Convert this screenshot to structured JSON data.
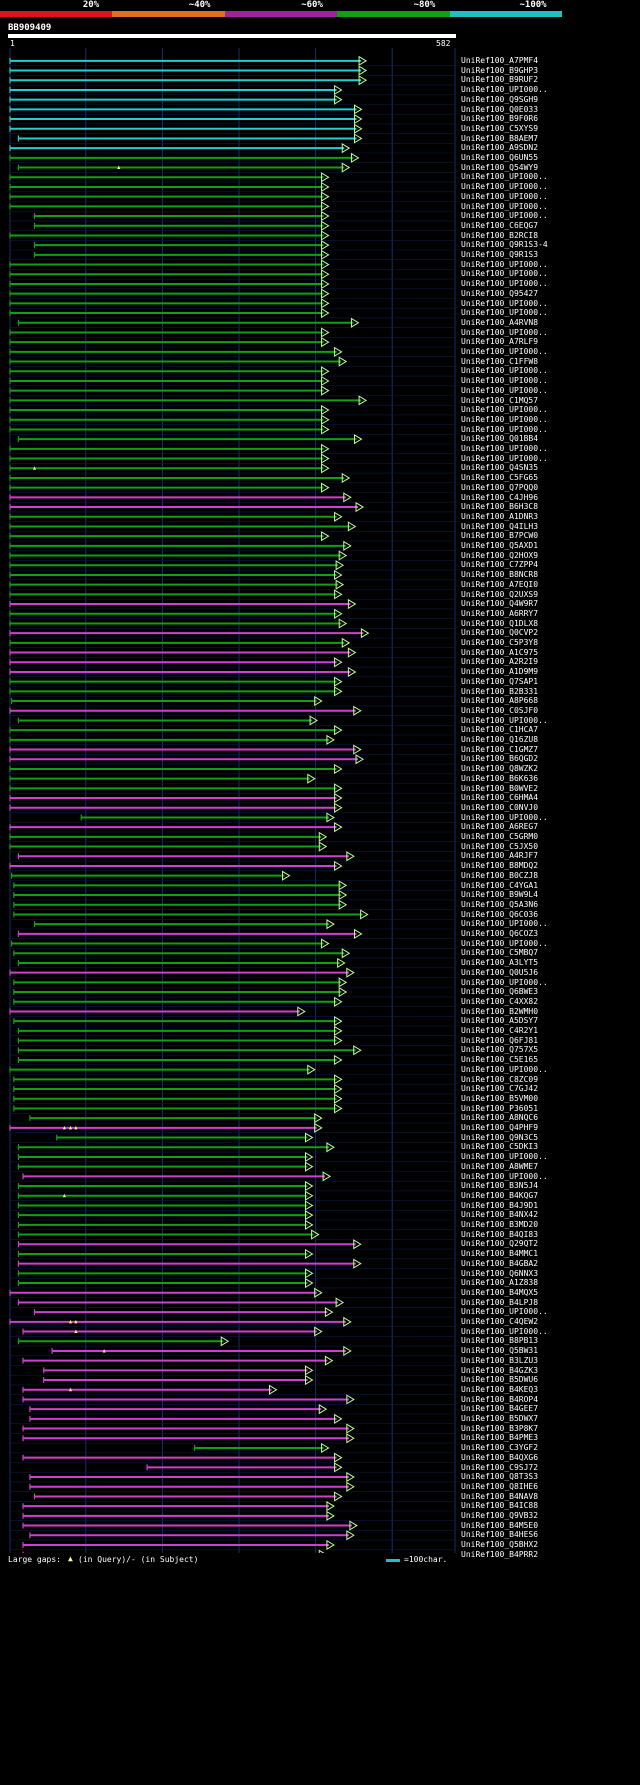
{
  "legend": [
    {
      "label": "20%",
      "color": "#e01020"
    },
    {
      "label": "~40%",
      "color": "#e07020"
    },
    {
      "label": "~60%",
      "color": "#a020a0"
    },
    {
      "label": "~80%",
      "color": "#10a010"
    },
    {
      "label": "~100%",
      "color": "#20c0c0"
    }
  ],
  "query": {
    "name": "BB909409",
    "start": "1",
    "end": "582"
  },
  "colors": {
    "cyan": "#20d0d0",
    "green": "#10a010",
    "magenta": "#d040d0",
    "grid": "#1a2e6a",
    "hgrid": "#0a1a44",
    "arrow": "#c0ff90",
    "gapmark": "#ffff80"
  },
  "hits": [
    {
      "name": "UniRef100_A7PMF4",
      "s": 1,
      "e": 462,
      "c": "cyan"
    },
    {
      "name": "UniRef100_B9GHP3",
      "s": 1,
      "e": 462,
      "c": "cyan"
    },
    {
      "name": "UniRef100_B9RUF2",
      "s": 1,
      "e": 462,
      "c": "cyan"
    },
    {
      "name": "UniRef100_UPI000..",
      "s": 1,
      "e": 430,
      "c": "cyan"
    },
    {
      "name": "UniRef100_Q9SGH9",
      "s": 1,
      "e": 430,
      "c": "cyan"
    },
    {
      "name": "UniRef100_Q0E033",
      "s": 1,
      "e": 456,
      "c": "cyan"
    },
    {
      "name": "UniRef100_B9F0R6",
      "s": 1,
      "e": 456,
      "c": "cyan"
    },
    {
      "name": "UniRef100_C5XYS9",
      "s": 1,
      "e": 456,
      "c": "cyan"
    },
    {
      "name": "UniRef100_B8AEM7",
      "s": 12,
      "e": 456,
      "c": "cyan"
    },
    {
      "name": "UniRef100_A9SDN2",
      "s": 1,
      "e": 440,
      "c": "cyan"
    },
    {
      "name": "UniRef100_Q6UN55",
      "s": 1,
      "e": 452,
      "c": "green"
    },
    {
      "name": "UniRef100_Q54WY9",
      "s": 12,
      "e": 440,
      "c": "green",
      "gaps": [
        143
      ]
    },
    {
      "name": "UniRef100_UPI000..",
      "s": 1,
      "e": 413,
      "c": "green"
    },
    {
      "name": "UniRef100_UPI000..",
      "s": 1,
      "e": 413,
      "c": "green"
    },
    {
      "name": "UniRef100_UPI000..",
      "s": 1,
      "e": 413,
      "c": "green"
    },
    {
      "name": "UniRef100_UPI000..",
      "s": 1,
      "e": 413,
      "c": "green"
    },
    {
      "name": "UniRef100_UPI000..",
      "s": 33,
      "e": 413,
      "c": "green"
    },
    {
      "name": "UniRef100_C6EQG7",
      "s": 33,
      "e": 413,
      "c": "green"
    },
    {
      "name": "UniRef100_B2RCI8",
      "s": 1,
      "e": 413,
      "c": "green"
    },
    {
      "name": "UniRef100_Q9R1S3-4",
      "s": 33,
      "e": 413,
      "c": "green"
    },
    {
      "name": "UniRef100_Q9R1S3",
      "s": 33,
      "e": 413,
      "c": "green"
    },
    {
      "name": "UniRef100_UPI000..",
      "s": 1,
      "e": 413,
      "c": "green"
    },
    {
      "name": "UniRef100_UPI000..",
      "s": 1,
      "e": 413,
      "c": "green"
    },
    {
      "name": "UniRef100_UPI000..",
      "s": 1,
      "e": 413,
      "c": "green"
    },
    {
      "name": "UniRef100_Q95427",
      "s": 1,
      "e": 413,
      "c": "green"
    },
    {
      "name": "UniRef100_UPI000..",
      "s": 1,
      "e": 413,
      "c": "green"
    },
    {
      "name": "UniRef100_UPI000..",
      "s": 1,
      "e": 413,
      "c": "green"
    },
    {
      "name": "UniRef100_A4RVN8",
      "s": 12,
      "e": 452,
      "c": "green"
    },
    {
      "name": "UniRef100_UPI000..",
      "s": 1,
      "e": 413,
      "c": "green"
    },
    {
      "name": "UniRef100_A7RLF9",
      "s": 1,
      "e": 413,
      "c": "green"
    },
    {
      "name": "UniRef100_UPI000..",
      "s": 1,
      "e": 430,
      "c": "green"
    },
    {
      "name": "UniRef100_C1FFW8",
      "s": 1,
      "e": 436,
      "c": "green"
    },
    {
      "name": "UniRef100_UPI000..",
      "s": 1,
      "e": 413,
      "c": "green"
    },
    {
      "name": "UniRef100_UPI000..",
      "s": 1,
      "e": 413,
      "c": "green"
    },
    {
      "name": "UniRef100_UPI000..",
      "s": 1,
      "e": 413,
      "c": "green"
    },
    {
      "name": "UniRef100_C1MQ57",
      "s": 1,
      "e": 462,
      "c": "green"
    },
    {
      "name": "UniRef100_UPI000..",
      "s": 1,
      "e": 413,
      "c": "green"
    },
    {
      "name": "UniRef100_UPI000..",
      "s": 1,
      "e": 413,
      "c": "green"
    },
    {
      "name": "UniRef100_UPI000..",
      "s": 1,
      "e": 413,
      "c": "green"
    },
    {
      "name": "UniRef100_Q01BB4",
      "s": 12,
      "e": 456,
      "c": "green"
    },
    {
      "name": "UniRef100_UPI000..",
      "s": 1,
      "e": 413,
      "c": "green"
    },
    {
      "name": "UniRef100_UPI000..",
      "s": 1,
      "e": 413,
      "c": "green"
    },
    {
      "name": "UniRef100_Q4SN35",
      "s": 1,
      "e": 413,
      "c": "green",
      "gaps": [
        33
      ]
    },
    {
      "name": "UniRef100_C5FG65",
      "s": 1,
      "e": 440,
      "c": "green"
    },
    {
      "name": "UniRef100_Q7PQQ0",
      "s": 1,
      "e": 413,
      "c": "green"
    },
    {
      "name": "UniRef100_C4JH96",
      "s": 1,
      "e": 442,
      "c": "magenta"
    },
    {
      "name": "UniRef100_B6H3C8",
      "s": 1,
      "e": 458,
      "c": "magenta"
    },
    {
      "name": "UniRef100_A1DNR3",
      "s": 1,
      "e": 430,
      "c": "green"
    },
    {
      "name": "UniRef100_Q4ILH3",
      "s": 1,
      "e": 448,
      "c": "green"
    },
    {
      "name": "UniRef100_B7PCW0",
      "s": 1,
      "e": 413,
      "c": "green"
    },
    {
      "name": "UniRef100_Q5AXD1",
      "s": 1,
      "e": 442,
      "c": "green"
    },
    {
      "name": "UniRef100_Q2HOX9",
      "s": 1,
      "e": 436,
      "c": "green"
    },
    {
      "name": "UniRef100_C7ZPP4",
      "s": 1,
      "e": 432,
      "c": "green"
    },
    {
      "name": "UniRef100_B8NCR8",
      "s": 1,
      "e": 430,
      "c": "green"
    },
    {
      "name": "UniRef100_A7EQI0",
      "s": 1,
      "e": 432,
      "c": "green"
    },
    {
      "name": "UniRef100_Q2UXS9",
      "s": 1,
      "e": 430,
      "c": "green"
    },
    {
      "name": "UniRef100_Q4W9R7",
      "s": 1,
      "e": 448,
      "c": "magenta"
    },
    {
      "name": "UniRef100_A6RRY7",
      "s": 1,
      "e": 430,
      "c": "green"
    },
    {
      "name": "UniRef100_Q1DLX8",
      "s": 1,
      "e": 436,
      "c": "green"
    },
    {
      "name": "UniRef100_Q0CVP2",
      "s": 1,
      "e": 465,
      "c": "magenta"
    },
    {
      "name": "UniRef100_C5P3Y8",
      "s": 1,
      "e": 440,
      "c": "green"
    },
    {
      "name": "UniRef100_A1C975",
      "s": 1,
      "e": 448,
      "c": "magenta"
    },
    {
      "name": "UniRef100_A2R2I9",
      "s": 1,
      "e": 430,
      "c": "magenta"
    },
    {
      "name": "UniRef100_A1D9M9",
      "s": 1,
      "e": 448,
      "c": "magenta"
    },
    {
      "name": "UniRef100_Q7SAP1",
      "s": 1,
      "e": 430,
      "c": "green"
    },
    {
      "name": "UniRef100_B2B331",
      "s": 1,
      "e": 430,
      "c": "green"
    },
    {
      "name": "UniRef100_A8P668",
      "s": 3,
      "e": 404,
      "c": "green"
    },
    {
      "name": "UniRef100_C0SJF0",
      "s": 1,
      "e": 455,
      "c": "magenta"
    },
    {
      "name": "UniRef100_UPI000..",
      "s": 12,
      "e": 398,
      "c": "green"
    },
    {
      "name": "UniRef100_C1HCA7",
      "s": 1,
      "e": 430,
      "c": "green"
    },
    {
      "name": "UniRef100_Q16ZU8",
      "s": 1,
      "e": 420,
      "c": "green"
    },
    {
      "name": "UniRef100_C1GMZ7",
      "s": 1,
      "e": 455,
      "c": "magenta"
    },
    {
      "name": "UniRef100_B6QGD2",
      "s": 1,
      "e": 458,
      "c": "magenta"
    },
    {
      "name": "UniRef100_Q8WZK2",
      "s": 1,
      "e": 430,
      "c": "green"
    },
    {
      "name": "UniRef100_B6K636",
      "s": 1,
      "e": 395,
      "c": "green"
    },
    {
      "name": "UniRef100_B0WVE2",
      "s": 1,
      "e": 430,
      "c": "green"
    },
    {
      "name": "UniRef100_C6HMA4",
      "s": 1,
      "e": 430,
      "c": "magenta"
    },
    {
      "name": "UniRef100_C0NVJ0",
      "s": 1,
      "e": 430,
      "c": "magenta"
    },
    {
      "name": "UniRef100_UPI000..",
      "s": 94,
      "e": 420,
      "c": "green"
    },
    {
      "name": "UniRef100_A6REG7",
      "s": 1,
      "e": 430,
      "c": "magenta"
    },
    {
      "name": "UniRef100_C5GRM0",
      "s": 1,
      "e": 410,
      "c": "green"
    },
    {
      "name": "UniRef100_C5JX50",
      "s": 1,
      "e": 410,
      "c": "green"
    },
    {
      "name": "UniRef100_A4RJF7",
      "s": 12,
      "e": 446,
      "c": "magenta"
    },
    {
      "name": "UniRef100_B8MDQ2",
      "s": 1,
      "e": 430,
      "c": "magenta"
    },
    {
      "name": "UniRef100_B0CZJ8",
      "s": 3,
      "e": 362,
      "c": "green"
    },
    {
      "name": "UniRef100_C4YGA1",
      "s": 6,
      "e": 436,
      "c": "green"
    },
    {
      "name": "UniRef100_B9W9L4",
      "s": 6,
      "e": 436,
      "c": "green"
    },
    {
      "name": "UniRef100_Q5A3N6",
      "s": 6,
      "e": 436,
      "c": "green"
    },
    {
      "name": "UniRef100_Q6C036",
      "s": 6,
      "e": 464,
      "c": "green"
    },
    {
      "name": "UniRef100_UPI000..",
      "s": 33,
      "e": 420,
      "c": "green"
    },
    {
      "name": "UniRef100_Q6COZ3",
      "s": 12,
      "e": 456,
      "c": "magenta"
    },
    {
      "name": "UniRef100_UPI000..",
      "s": 3,
      "e": 413,
      "c": "green"
    },
    {
      "name": "UniRef100_C5MBQ7",
      "s": 6,
      "e": 440,
      "c": "green"
    },
    {
      "name": "UniRef100_A3LYT5",
      "s": 12,
      "e": 434,
      "c": "green"
    },
    {
      "name": "UniRef100_Q0U5J6",
      "s": 1,
      "e": 446,
      "c": "magenta"
    },
    {
      "name": "UniRef100_UPI000..",
      "s": 6,
      "e": 436,
      "c": "green"
    },
    {
      "name": "UniRef100_Q6BWE3",
      "s": 6,
      "e": 436,
      "c": "green"
    },
    {
      "name": "UniRef100_C4XX82",
      "s": 6,
      "e": 430,
      "c": "green"
    },
    {
      "name": "UniRef100_B2WMH0",
      "s": 1,
      "e": 382,
      "c": "magenta"
    },
    {
      "name": "UniRef100_A5DSY7",
      "s": 6,
      "e": 430,
      "c": "green"
    },
    {
      "name": "UniRef100_C4R2Y1",
      "s": 12,
      "e": 430,
      "c": "green"
    },
    {
      "name": "UniRef100_Q6FJ81",
      "s": 12,
      "e": 430,
      "c": "green"
    },
    {
      "name": "UniRef100_Q757X5",
      "s": 12,
      "e": 455,
      "c": "green"
    },
    {
      "name": "UniRef100_C5E165",
      "s": 12,
      "e": 430,
      "c": "green"
    },
    {
      "name": "UniRef100_UPI000..",
      "s": 1,
      "e": 395,
      "c": "green"
    },
    {
      "name": "UniRef100_C8ZC09",
      "s": 6,
      "e": 430,
      "c": "green"
    },
    {
      "name": "UniRef100_C7GJ42",
      "s": 6,
      "e": 430,
      "c": "green"
    },
    {
      "name": "UniRef100_B5VM00",
      "s": 6,
      "e": 430,
      "c": "green"
    },
    {
      "name": "UniRef100_P36051",
      "s": 6,
      "e": 430,
      "c": "green"
    },
    {
      "name": "UniRef100_A8NQC6",
      "s": 27,
      "e": 404,
      "c": "green"
    },
    {
      "name": "UniRef100_Q4PHF9",
      "s": 1,
      "e": 404,
      "c": "magenta",
      "gaps": [
        72,
        80,
        87
      ]
    },
    {
      "name": "UniRef100_Q9N3C5",
      "s": 62,
      "e": 392,
      "c": "green"
    },
    {
      "name": "UniRef100_C5DKI3",
      "s": 12,
      "e": 420,
      "c": "green"
    },
    {
      "name": "UniRef100_UPI000..",
      "s": 12,
      "e": 392,
      "c": "green"
    },
    {
      "name": "UniRef100_A8WME7",
      "s": 12,
      "e": 392,
      "c": "green"
    },
    {
      "name": "UniRef100_UPI000..",
      "s": 18,
      "e": 415,
      "c": "magenta"
    },
    {
      "name": "UniRef100_B3N5J4",
      "s": 12,
      "e": 392,
      "c": "green"
    },
    {
      "name": "UniRef100_B4KQG7",
      "s": 12,
      "e": 392,
      "c": "green",
      "gaps": [
        72
      ]
    },
    {
      "name": "UniRef100_B4J9D1",
      "s": 12,
      "e": 392,
      "c": "green"
    },
    {
      "name": "UniRef100_B4NX42",
      "s": 12,
      "e": 392,
      "c": "green"
    },
    {
      "name": "UniRef100_B3MD20",
      "s": 12,
      "e": 392,
      "c": "green"
    },
    {
      "name": "UniRef100_B4QI83",
      "s": 12,
      "e": 400,
      "c": "green"
    },
    {
      "name": "UniRef100_Q29QT2",
      "s": 12,
      "e": 455,
      "c": "magenta"
    },
    {
      "name": "UniRef100_B4MMC1",
      "s": 12,
      "e": 392,
      "c": "green"
    },
    {
      "name": "UniRef100_B4GBA2",
      "s": 12,
      "e": 455,
      "c": "magenta"
    },
    {
      "name": "UniRef100_Q6NNX3",
      "s": 12,
      "e": 392,
      "c": "green"
    },
    {
      "name": "UniRef100_A1Z838",
      "s": 12,
      "e": 392,
      "c": "green"
    },
    {
      "name": "UniRef100_B4MQX5",
      "s": 1,
      "e": 404,
      "c": "magenta"
    },
    {
      "name": "UniRef100_B4LPJ8",
      "s": 12,
      "e": 432,
      "c": "magenta"
    },
    {
      "name": "UniRef100_UPI000..",
      "s": 33,
      "e": 418,
      "c": "magenta"
    },
    {
      "name": "UniRef100_C4QEW2",
      "s": 1,
      "e": 442,
      "c": "magenta",
      "gaps": [
        80,
        87
      ]
    },
    {
      "name": "UniRef100_UPI000..",
      "s": 18,
      "e": 404,
      "c": "magenta",
      "gaps": [
        87
      ]
    },
    {
      "name": "UniRef100_B8PB13",
      "s": 12,
      "e": 282,
      "c": "green"
    },
    {
      "name": "UniRef100_Q5BW31",
      "s": 56,
      "e": 442,
      "c": "magenta",
      "gaps": [
        124
      ]
    },
    {
      "name": "UniRef100_B3LZU3",
      "s": 18,
      "e": 418,
      "c": "magenta"
    },
    {
      "name": "UniRef100_B4GZK3",
      "s": 45,
      "e": 392,
      "c": "magenta"
    },
    {
      "name": "UniRef100_B5DWU6",
      "s": 45,
      "e": 392,
      "c": "magenta"
    },
    {
      "name": "UniRef100_B4KEQ3",
      "s": 18,
      "e": 345,
      "c": "magenta",
      "gaps": [
        80
      ]
    },
    {
      "name": "UniRef100_B4ROP4",
      "s": 18,
      "e": 446,
      "c": "magenta"
    },
    {
      "name": "UniRef100_B4GEE7",
      "s": 27,
      "e": 410,
      "c": "magenta"
    },
    {
      "name": "UniRef100_B5DWX7",
      "s": 27,
      "e": 430,
      "c": "magenta"
    },
    {
      "name": "UniRef100_B3P8K7",
      "s": 18,
      "e": 446,
      "c": "magenta"
    },
    {
      "name": "UniRef100_B4PME3",
      "s": 18,
      "e": 446,
      "c": "magenta"
    },
    {
      "name": "UniRef100_C3YGF2",
      "s": 242,
      "e": 413,
      "c": "green"
    },
    {
      "name": "UniRef100_B4QXG6",
      "s": 18,
      "e": 430,
      "c": "magenta"
    },
    {
      "name": "UniRef100_C9SJ72",
      "s": 180,
      "e": 430,
      "c": "magenta"
    },
    {
      "name": "UniRef100_Q8T3S3",
      "s": 27,
      "e": 446,
      "c": "magenta"
    },
    {
      "name": "UniRef100_Q8IHE6",
      "s": 27,
      "e": 446,
      "c": "magenta"
    },
    {
      "name": "UniRef100_B4NAV8",
      "s": 33,
      "e": 430,
      "c": "magenta"
    },
    {
      "name": "UniRef100_B4IC88",
      "s": 18,
      "e": 420,
      "c": "magenta"
    },
    {
      "name": "UniRef100_Q9VB32",
      "s": 18,
      "e": 420,
      "c": "magenta"
    },
    {
      "name": "UniRef100_B4M5E0",
      "s": 18,
      "e": 450,
      "c": "magenta"
    },
    {
      "name": "UniRef100_B4HES6",
      "s": 27,
      "e": 446,
      "c": "magenta"
    },
    {
      "name": "UniRef100_Q5BHX2",
      "s": 18,
      "e": 420,
      "c": "magenta"
    },
    {
      "name": "UniRef100_B4PRR2",
      "s": 18,
      "e": 410,
      "c": "magenta"
    }
  ],
  "footer": {
    "gaps_label": "Large gaps:",
    "gaps_text": "(in Query)/- (in Subject)",
    "scale_label": "=100char."
  }
}
